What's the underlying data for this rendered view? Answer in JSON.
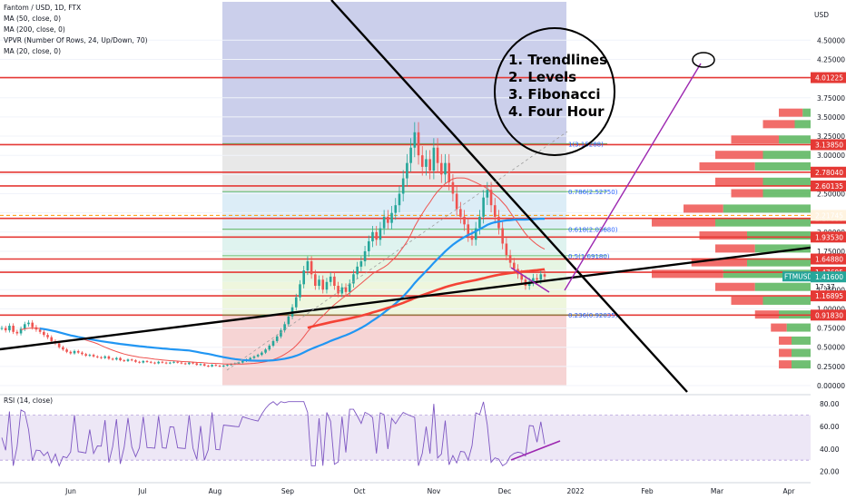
{
  "legend": {
    "symbol": "Fantom / USD, 1D, FTX",
    "ma50": "MA (50, close, 0)",
    "ma200": "MA (200, close, 0)",
    "vpvr": "VPVR (Number Of Rows, 24, Up/Down, 70)",
    "ma20": "MA (20, close, 0)",
    "rsi": "RSI (14, close)"
  },
  "notes": {
    "line1": "1. Trendlines",
    "line2": "2. Levels",
    "line3": "3. Fibonacci",
    "line4": "4. Four Hour"
  },
  "axis": {
    "currency_top": "USD",
    "ticker_tag": "FTMUSD",
    "current_price": "1.41600",
    "countdown": "17:37"
  },
  "colors": {
    "candle_up": "#26a69a",
    "candle_down": "#ef5350",
    "level_line": "#e53935",
    "trendline": "#000000",
    "ma50": "#2196f3",
    "ma200": "#f44336",
    "ma20": "#ef5350",
    "rsi_line": "#7e57c2",
    "rsi_band": "#ede7f6",
    "fib_top": "#c5cae9",
    "fib_bottom": "#f5cfcf",
    "vpvr_up": "#4caf50",
    "vpvr_down": "#ef5350"
  },
  "chart_data": {
    "type": "candlestick",
    "symbol": "FTMUSD",
    "timeframe": "1D",
    "exchange": "FTX",
    "y_scale": "log",
    "price_range": [
      0.0,
      5.0
    ],
    "price_ticks": [
      "4.50000",
      "4.25000",
      "3.75000",
      "3.50000",
      "3.25000",
      "3.00000",
      "2.75000",
      "2.50000",
      "2.25000",
      "2.00000",
      "1.75000",
      "1.50000",
      "1.25000",
      "1.00000",
      "0.75000",
      "0.50000",
      "0.25000",
      "0.00000"
    ],
    "time_ticks": [
      "Jun",
      "Jul",
      "Aug",
      "Sep",
      "Oct",
      "Nov",
      "Dec",
      "2022",
      "Feb",
      "Mar",
      "Apr"
    ],
    "horizontal_levels": [
      {
        "label": "4.01225",
        "value": 4.01225
      },
      {
        "label": "3.13850",
        "value": 3.1385
      },
      {
        "label": "2.78040",
        "value": 2.7804
      },
      {
        "label": "2.60135",
        "value": 2.60135
      },
      {
        "label": "2.17880",
        "value": 2.1788
      },
      {
        "label": "1.93530",
        "value": 1.9353
      },
      {
        "label": "1.64880",
        "value": 1.6488
      },
      {
        "label": "1.47695",
        "value": 1.47695
      },
      {
        "label": "1.16895",
        "value": 1.16895
      },
      {
        "label": "0.91830",
        "value": 0.9183
      }
    ],
    "dashed_level": {
      "label": "2.21745",
      "value": 2.21745
    },
    "fibonacci": [
      {
        "label": "1(3.15288)",
        "ratio": 1,
        "value": 3.15288
      },
      {
        "label": "0.786(2.52750)",
        "ratio": 0.786,
        "value": 2.5275
      },
      {
        "label": "0.618(2.03680)",
        "ratio": 0.618,
        "value": 2.0368
      },
      {
        "label": "0.5(1.69180)",
        "ratio": 0.5,
        "value": 1.6918
      },
      {
        "label": "0.236(0.92035)",
        "ratio": 0.236,
        "value": 0.92035
      }
    ],
    "closes": [
      0.75,
      0.72,
      0.78,
      0.7,
      0.68,
      0.74,
      0.8,
      0.82,
      0.76,
      0.73,
      0.7,
      0.66,
      0.63,
      0.58,
      0.55,
      0.5,
      0.47,
      0.44,
      0.42,
      0.45,
      0.43,
      0.41,
      0.39,
      0.4,
      0.38,
      0.37,
      0.36,
      0.38,
      0.35,
      0.34,
      0.36,
      0.33,
      0.32,
      0.34,
      0.33,
      0.31,
      0.3,
      0.32,
      0.31,
      0.3,
      0.29,
      0.31,
      0.3,
      0.29,
      0.3,
      0.31,
      0.3,
      0.29,
      0.28,
      0.3,
      0.29,
      0.27,
      0.28,
      0.26,
      0.25,
      0.27,
      0.26,
      0.25,
      0.26,
      0.27,
      0.28,
      0.29,
      0.3,
      0.32,
      0.34,
      0.36,
      0.38,
      0.4,
      0.43,
      0.47,
      0.52,
      0.58,
      0.64,
      0.72,
      0.8,
      0.9,
      1.02,
      1.15,
      1.32,
      1.5,
      1.62,
      1.45,
      1.3,
      1.38,
      1.25,
      1.35,
      1.42,
      1.3,
      1.2,
      1.28,
      1.22,
      1.33,
      1.45,
      1.55,
      1.62,
      1.75,
      1.88,
      2.0,
      1.9,
      2.05,
      2.2,
      2.12,
      2.25,
      2.35,
      2.5,
      2.7,
      2.9,
      3.1,
      3.3,
      3.0,
      2.85,
      2.95,
      2.8,
      3.1,
      2.9,
      2.75,
      2.9,
      2.65,
      2.5,
      2.3,
      2.2,
      2.1,
      1.95,
      1.9,
      2.05,
      2.2,
      2.45,
      2.55,
      2.35,
      2.2,
      2.05,
      1.85,
      1.7,
      1.6,
      1.52,
      1.45,
      1.38,
      1.3,
      1.35,
      1.4,
      1.38,
      1.45,
      1.42
    ],
    "notes": [
      "1. Trendlines",
      "2. Levels",
      "3. Fibonacci",
      "4. Four Hour"
    ],
    "rsi_ticks": [
      "80.00",
      "60.00",
      "40.00",
      "20.00"
    ],
    "rsi_range": [
      0,
      100
    ],
    "rsi_band": [
      30,
      70
    ]
  }
}
